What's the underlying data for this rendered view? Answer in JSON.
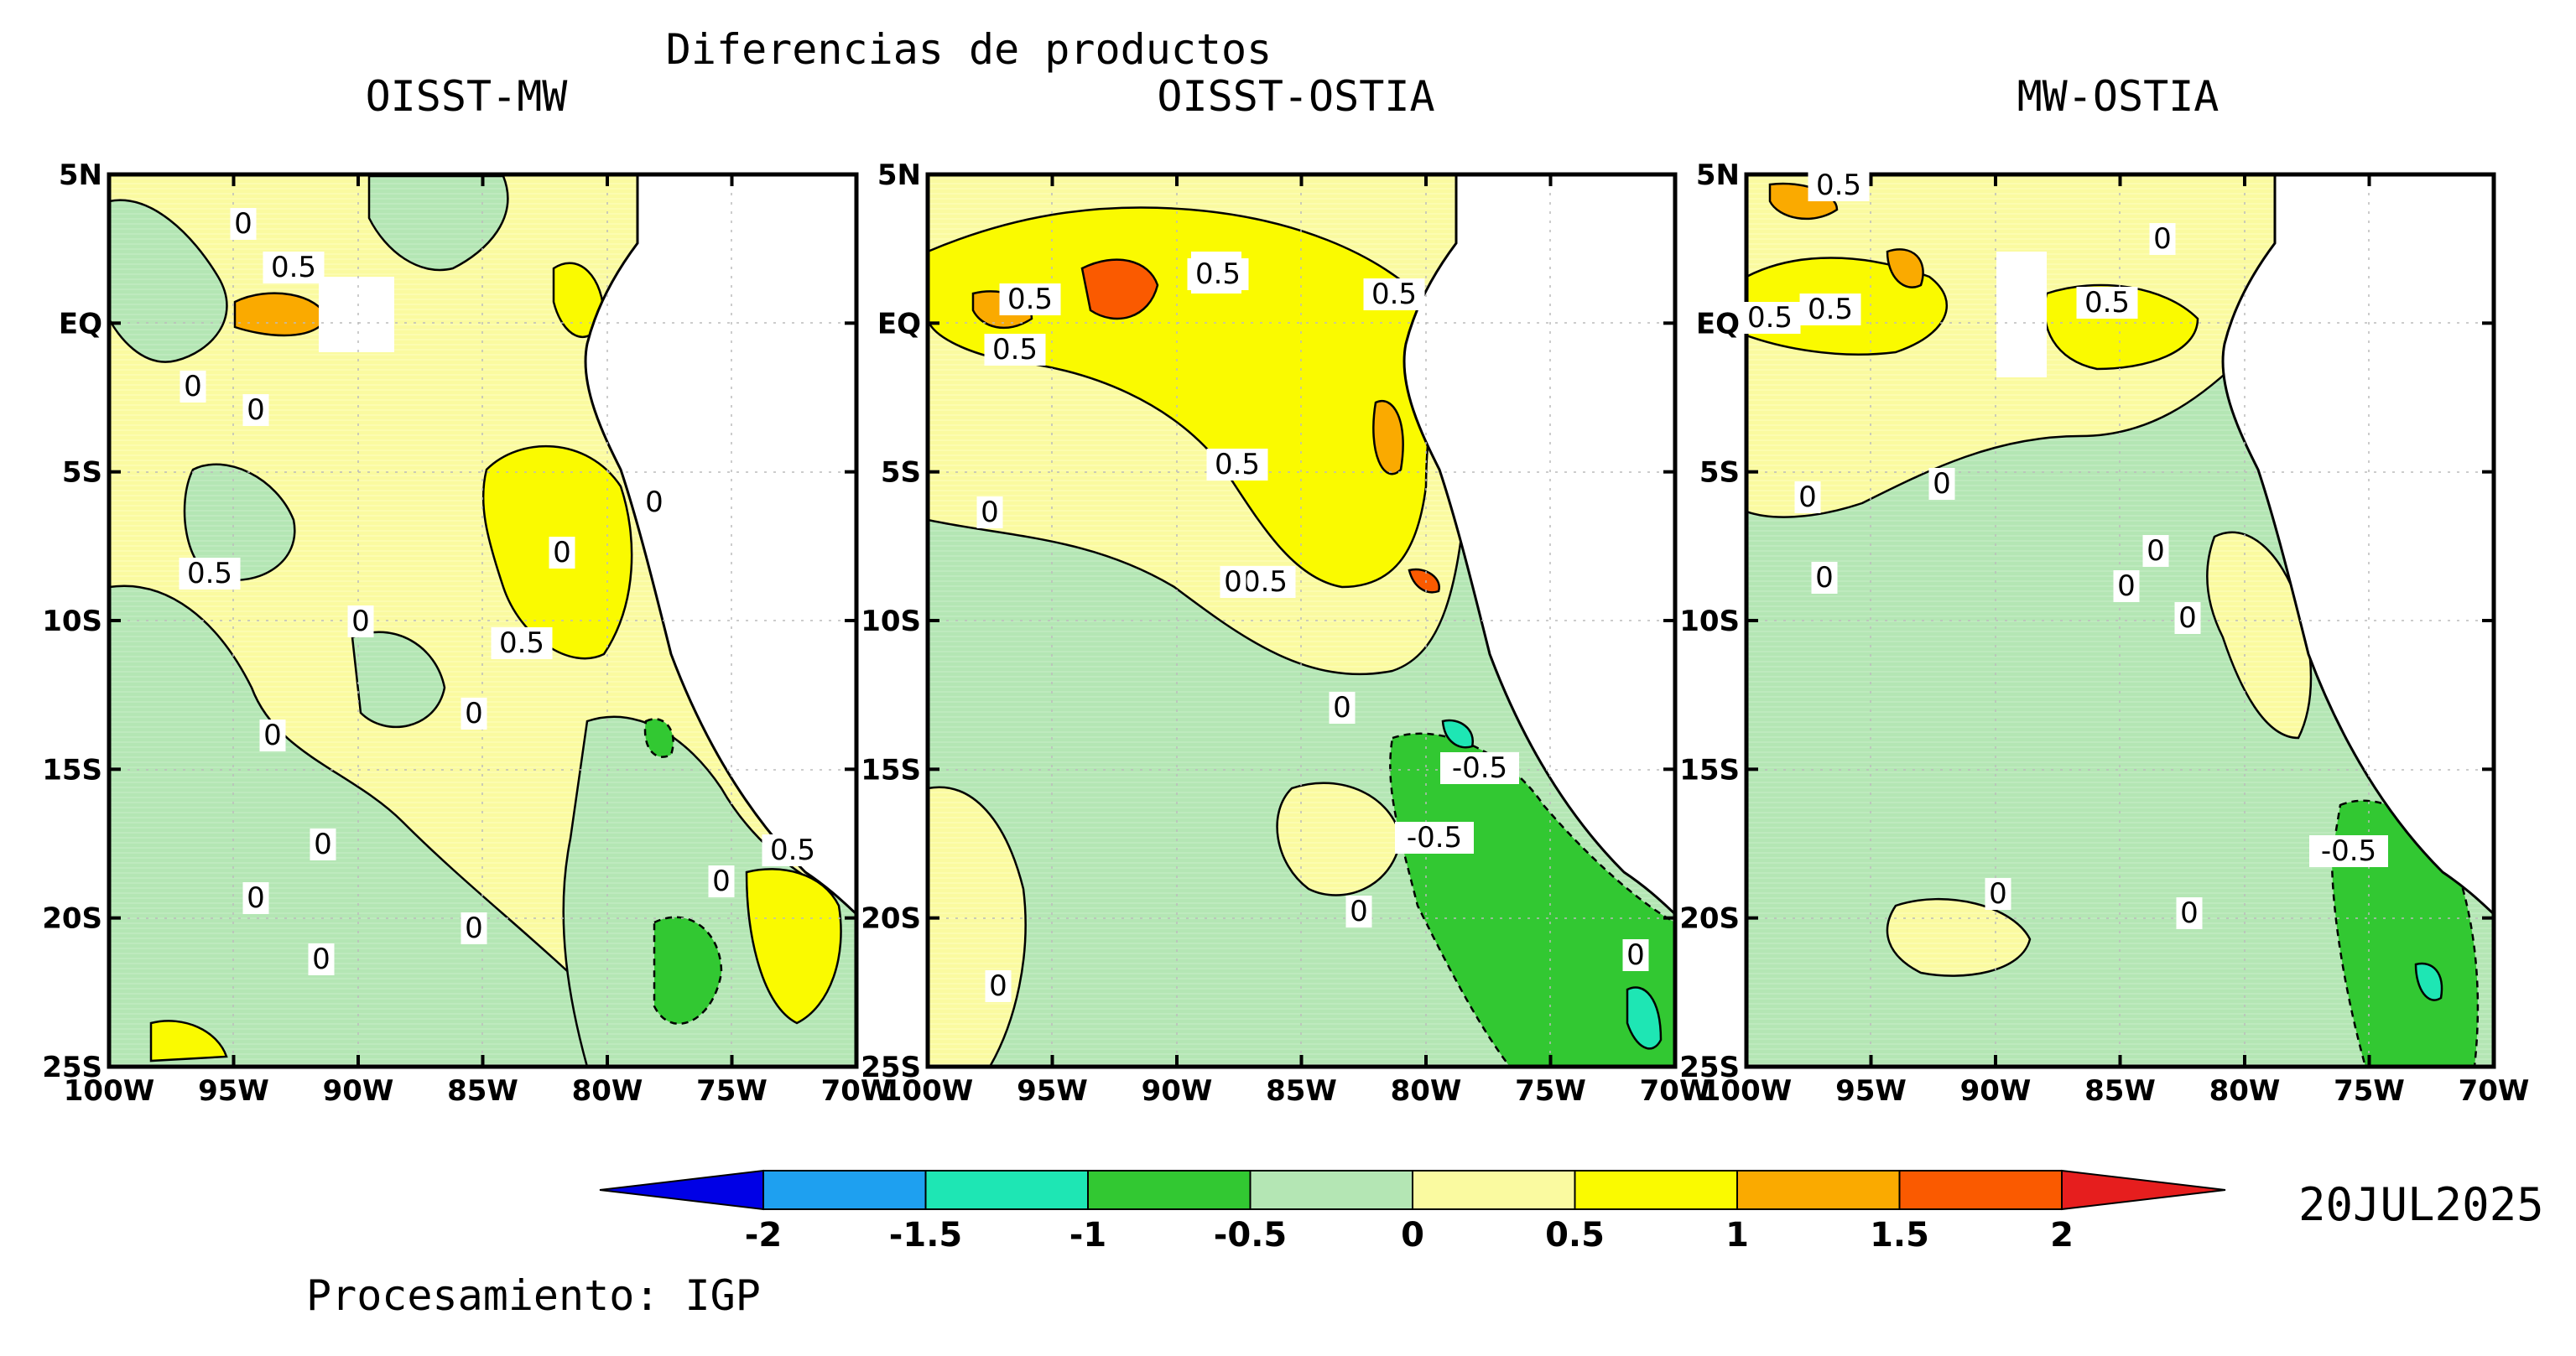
{
  "title": "Diferencias de productos",
  "date": "20JUL2025",
  "credit": "Procesamiento: IGP",
  "panels": [
    {
      "title": "OISST-MW",
      "contour_labels": [
        "0",
        "0.5",
        "0",
        "0",
        "0.5",
        "0",
        "0",
        "0",
        "0.5",
        "0",
        "0",
        "0",
        "0",
        "0",
        "0",
        "0.5",
        "0"
      ]
    },
    {
      "title": "OISST-OSTIA",
      "contour_labels": [
        "0.5",
        "0.5",
        "0.5",
        "0.5",
        "0.5",
        "0",
        "0.5",
        "0",
        "-0.5",
        "-0.5",
        "0",
        "0",
        "0",
        "0"
      ]
    },
    {
      "title": "MW-OSTIA",
      "contour_labels": [
        "0.5",
        "0",
        "0.5",
        "0.5",
        "0.5",
        "0",
        "0",
        "0",
        "0",
        "0",
        "0",
        "-0.5",
        "0",
        "0"
      ]
    }
  ],
  "axes": {
    "lat_ticks": [
      "5N",
      "EQ",
      "5S",
      "10S",
      "15S",
      "20S",
      "25S"
    ],
    "lon_ticks": [
      "100W",
      "95W",
      "90W",
      "85W",
      "80W",
      "75W",
      "70W"
    ],
    "lat_range": [
      -25,
      5
    ],
    "lon_range": [
      -100,
      -70
    ],
    "grid": "dotted"
  },
  "colorbar": {
    "levels": [
      "-2",
      "-1.5",
      "-1",
      "-0.5",
      "0",
      "0.5",
      "1",
      "1.5",
      "2"
    ],
    "colors": [
      "#0000e6",
      "#1ea0f0",
      "#1ee6b4",
      "#32c832",
      "#b4e6b4",
      "#fafaa0",
      "#fafa00",
      "#faaa00",
      "#fa5a00",
      "#e61e1e"
    ]
  },
  "palette": {
    "land": "#ffffff",
    "coast": "#000000"
  }
}
